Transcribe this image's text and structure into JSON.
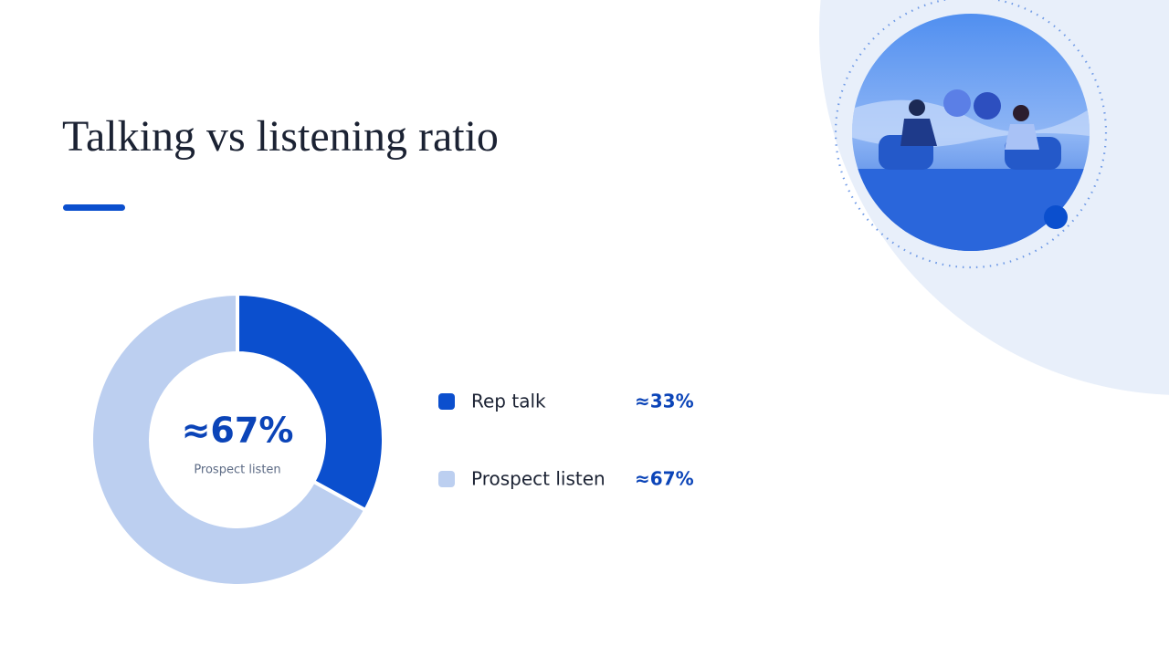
{
  "chart_data": {
    "type": "donut",
    "title": "Talking vs listening ratio",
    "categories": [
      "Rep talk",
      "Prospect listen"
    ],
    "values": [
      33,
      67
    ],
    "value_labels": [
      "≈33%",
      "≈67%"
    ],
    "colors": [
      "#0b4fce",
      "#bccff0"
    ],
    "legend": "right"
  }
}
